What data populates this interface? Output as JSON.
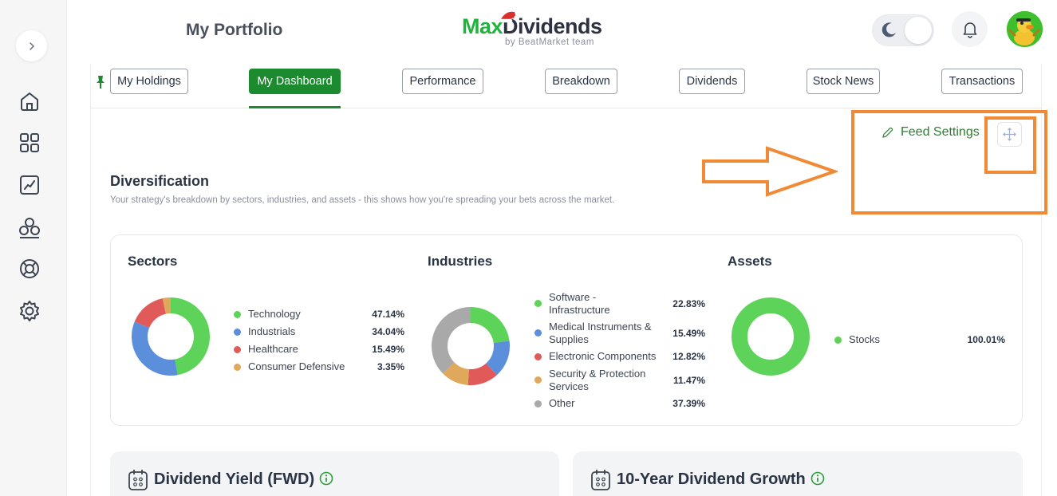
{
  "header": {
    "page_title": "My Portfolio",
    "logo_max": "Max",
    "logo_dividends": "Dividends",
    "logo_tagline": "by BeatMarket team"
  },
  "colors": {
    "brand_green": "#1c8a2e",
    "technology": "#5ed35a",
    "industrials": "#5b8fdc",
    "healthcare": "#e05a5a",
    "consumer_defensive": "#dfa85a",
    "other": "#a9a9a9",
    "annotation": "#f08a36"
  },
  "sidebar": {
    "items": [
      {
        "icon": "expand-chevron-icon"
      },
      {
        "icon": "home-icon"
      },
      {
        "icon": "dashboard-grid-icon"
      },
      {
        "icon": "chart-line-icon"
      },
      {
        "icon": "community-icon"
      },
      {
        "icon": "support-lifebuoy-icon"
      },
      {
        "icon": "settings-gear-icon"
      }
    ]
  },
  "tabs": [
    {
      "label": "My Holdings"
    },
    {
      "label": "My Dashboard",
      "active": true
    },
    {
      "label": "Performance"
    },
    {
      "label": "Breakdown"
    },
    {
      "label": "Dividends"
    },
    {
      "label": "Stock News"
    },
    {
      "label": "Transactions"
    }
  ],
  "feed": {
    "settings_label": "Feed Settings"
  },
  "diversification": {
    "title": "Diversification",
    "subtitle": "Your strategy's breakdown by sectors, industries, and assets - this shows how you're spreading your bets across the market.",
    "sectors": {
      "title": "Sectors",
      "items": [
        {
          "label": "Technology",
          "value": "47.14%",
          "pct": 47.14,
          "color": "#5ed35a"
        },
        {
          "label": "Industrials",
          "value": "34.04%",
          "pct": 34.04,
          "color": "#5b8fdc"
        },
        {
          "label": "Healthcare",
          "value": "15.49%",
          "pct": 15.49,
          "color": "#e05a5a"
        },
        {
          "label": "Consumer Defensive",
          "value": "3.35%",
          "pct": 3.35,
          "color": "#dfa85a"
        }
      ]
    },
    "industries": {
      "title": "Industries",
      "items": [
        {
          "label": "Software - Infrastructure",
          "value": "22.83%",
          "pct": 22.83,
          "color": "#5ed35a"
        },
        {
          "label": "Medical Instruments & Supplies",
          "value": "15.49%",
          "pct": 15.49,
          "color": "#5b8fdc"
        },
        {
          "label": "Electronic Components",
          "value": "12.82%",
          "pct": 12.82,
          "color": "#e05a5a"
        },
        {
          "label": "Security & Protection Services",
          "value": "11.47%",
          "pct": 11.47,
          "color": "#dfa85a"
        },
        {
          "label": "Other",
          "value": "37.39%",
          "pct": 37.39,
          "color": "#a9a9a9"
        }
      ]
    },
    "assets": {
      "title": "Assets",
      "items": [
        {
          "label": "Stocks",
          "value": "100.01%",
          "pct": 100.01,
          "color": "#5ed35a"
        }
      ]
    }
  },
  "cards": {
    "yield_title": "Dividend Yield (FWD)",
    "growth_title": "10-Year Dividend Growth"
  }
}
